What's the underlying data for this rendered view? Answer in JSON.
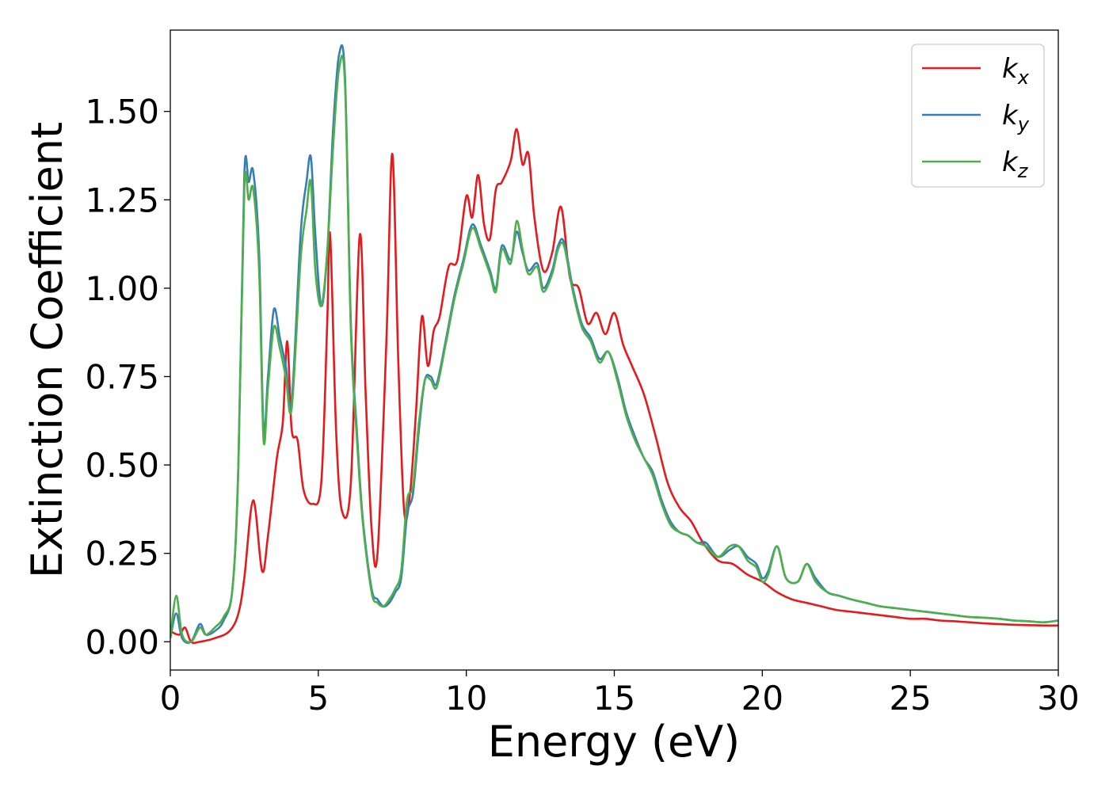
{
  "chart_data": {
    "type": "line",
    "xlabel": "Energy (eV)",
    "ylabel": "Extinction Coefficient",
    "xlim": [
      0,
      30
    ],
    "ylim": [
      -0.08,
      1.73
    ],
    "x_ticks": [
      0,
      5,
      10,
      15,
      20,
      25,
      30
    ],
    "x_tick_labels": [
      "0",
      "5",
      "10",
      "15",
      "20",
      "25",
      "30"
    ],
    "y_ticks": [
      0.0,
      0.25,
      0.5,
      0.75,
      1.0,
      1.25,
      1.5
    ],
    "y_tick_labels": [
      "0.00",
      "0.25",
      "0.50",
      "0.75",
      "1.00",
      "1.25",
      "1.50"
    ],
    "grid": false,
    "legend_position": "top-right",
    "series": [
      {
        "name": "k_x",
        "legend_base": "k",
        "legend_sub": "x",
        "color": "#e41a1c",
        "x": [
          0,
          0.3,
          0.5,
          0.7,
          1.0,
          1.5,
          2.0,
          2.3,
          2.5,
          2.8,
          3.1,
          3.3,
          3.6,
          3.8,
          3.95,
          4.1,
          4.3,
          4.5,
          4.8,
          5.1,
          5.3,
          5.4,
          5.6,
          5.8,
          6.1,
          6.4,
          6.6,
          6.8,
          7.0,
          7.3,
          7.5,
          7.7,
          7.9,
          8.1,
          8.3,
          8.5,
          8.7,
          8.9,
          9.1,
          9.4,
          9.7,
          10.0,
          10.2,
          10.4,
          10.6,
          10.8,
          11.0,
          11.2,
          11.5,
          11.7,
          11.9,
          12.1,
          12.3,
          12.6,
          12.9,
          13.2,
          13.5,
          13.8,
          14.1,
          14.4,
          14.7,
          15.0,
          15.3,
          15.6,
          16.0,
          16.4,
          16.8,
          17.2,
          17.6,
          18.0,
          18.5,
          19.0,
          19.5,
          20.0,
          20.5,
          21.0,
          21.5,
          22.0,
          22.5,
          23.0,
          23.5,
          24.0,
          24.5,
          25.0,
          25.5,
          26.0,
          26.5,
          27.0,
          27.5,
          28.0,
          28.5,
          29.0,
          29.5,
          30.0
        ],
        "y": [
          0.03,
          0.02,
          0.04,
          0.0,
          0.0,
          0.01,
          0.03,
          0.08,
          0.18,
          0.4,
          0.2,
          0.3,
          0.52,
          0.62,
          0.85,
          0.6,
          0.57,
          0.43,
          0.39,
          0.45,
          0.9,
          1.15,
          0.6,
          0.37,
          0.45,
          1.15,
          0.7,
          0.32,
          0.25,
          0.85,
          1.38,
          0.8,
          0.37,
          0.42,
          0.65,
          0.92,
          0.78,
          0.88,
          0.92,
          1.06,
          1.08,
          1.26,
          1.2,
          1.32,
          1.18,
          1.14,
          1.28,
          1.3,
          1.36,
          1.45,
          1.35,
          1.38,
          1.2,
          1.05,
          1.1,
          1.23,
          1.03,
          1.0,
          0.9,
          0.93,
          0.87,
          0.93,
          0.84,
          0.78,
          0.7,
          0.58,
          0.45,
          0.38,
          0.34,
          0.28,
          0.23,
          0.22,
          0.19,
          0.17,
          0.14,
          0.12,
          0.11,
          0.1,
          0.09,
          0.085,
          0.08,
          0.075,
          0.07,
          0.065,
          0.065,
          0.06,
          0.058,
          0.055,
          0.052,
          0.05,
          0.048,
          0.047,
          0.046,
          0.046
        ]
      },
      {
        "name": "k_y",
        "legend_base": "k",
        "legend_sub": "y",
        "color": "#377eb8",
        "x": [
          0,
          0.2,
          0.4,
          0.7,
          1.0,
          1.2,
          1.5,
          1.8,
          2.1,
          2.3,
          2.5,
          2.65,
          2.8,
          3.0,
          3.15,
          3.3,
          3.5,
          3.7,
          3.9,
          4.1,
          4.4,
          4.6,
          4.75,
          4.9,
          5.1,
          5.3,
          5.5,
          5.7,
          5.9,
          6.1,
          6.3,
          6.5,
          6.8,
          7.0,
          7.2,
          7.4,
          7.6,
          7.8,
          8.0,
          8.2,
          8.4,
          8.6,
          8.8,
          9.0,
          9.3,
          9.6,
          9.9,
          10.2,
          10.5,
          10.8,
          11.0,
          11.2,
          11.5,
          11.7,
          11.9,
          12.1,
          12.4,
          12.6,
          12.9,
          13.1,
          13.3,
          13.6,
          13.9,
          14.2,
          14.5,
          14.8,
          15.1,
          15.4,
          15.7,
          16.0,
          16.3,
          16.6,
          16.9,
          17.2,
          17.5,
          17.8,
          18.1,
          18.5,
          18.9,
          19.2,
          19.5,
          19.8,
          20.0,
          20.2,
          20.5,
          20.8,
          21.2,
          21.5,
          21.8,
          22.2,
          22.6,
          23.0,
          23.5,
          24.0,
          24.5,
          25.0,
          25.5,
          26.0,
          26.5,
          27.0,
          27.5,
          28.0,
          28.5,
          29.0,
          29.5,
          30.0
        ],
        "y": [
          0.01,
          0.08,
          0.01,
          0.0,
          0.05,
          0.02,
          0.03,
          0.06,
          0.15,
          0.5,
          1.32,
          1.3,
          1.33,
          1.1,
          0.6,
          0.75,
          0.94,
          0.86,
          0.78,
          0.68,
          1.15,
          1.3,
          1.37,
          1.15,
          0.95,
          1.1,
          1.45,
          1.66,
          1.6,
          0.9,
          0.6,
          0.35,
          0.15,
          0.12,
          0.1,
          0.11,
          0.14,
          0.18,
          0.36,
          0.42,
          0.6,
          0.74,
          0.75,
          0.73,
          0.85,
          0.98,
          1.08,
          1.18,
          1.12,
          1.05,
          1.0,
          1.12,
          1.08,
          1.16,
          1.1,
          1.05,
          1.07,
          1.0,
          1.05,
          1.12,
          1.13,
          1.0,
          0.9,
          0.86,
          0.8,
          0.82,
          0.75,
          0.65,
          0.58,
          0.52,
          0.48,
          0.4,
          0.34,
          0.31,
          0.3,
          0.28,
          0.28,
          0.24,
          0.26,
          0.27,
          0.24,
          0.22,
          0.18,
          0.2,
          0.27,
          0.18,
          0.17,
          0.22,
          0.18,
          0.14,
          0.13,
          0.12,
          0.11,
          0.1,
          0.095,
          0.09,
          0.085,
          0.08,
          0.075,
          0.07,
          0.068,
          0.065,
          0.06,
          0.058,
          0.055,
          0.06
        ]
      },
      {
        "name": "k_z",
        "legend_base": "k",
        "legend_sub": "z",
        "color": "#4daf4a",
        "x": [
          0,
          0.2,
          0.4,
          0.7,
          1.0,
          1.2,
          1.5,
          1.8,
          2.1,
          2.3,
          2.5,
          2.65,
          2.8,
          3.0,
          3.15,
          3.3,
          3.5,
          3.7,
          3.9,
          4.1,
          4.4,
          4.6,
          4.75,
          4.9,
          5.1,
          5.3,
          5.5,
          5.7,
          5.9,
          6.1,
          6.3,
          6.5,
          6.8,
          7.0,
          7.2,
          7.4,
          7.6,
          7.8,
          8.0,
          8.2,
          8.4,
          8.6,
          8.8,
          9.0,
          9.3,
          9.6,
          9.9,
          10.2,
          10.5,
          10.8,
          11.0,
          11.2,
          11.5,
          11.7,
          11.9,
          12.1,
          12.4,
          12.6,
          12.9,
          13.1,
          13.3,
          13.6,
          13.9,
          14.2,
          14.5,
          14.8,
          15.1,
          15.4,
          15.7,
          16.0,
          16.3,
          16.6,
          16.9,
          17.2,
          17.5,
          17.8,
          18.1,
          18.5,
          18.9,
          19.2,
          19.5,
          19.8,
          20.0,
          20.2,
          20.5,
          20.8,
          21.2,
          21.5,
          21.8,
          22.2,
          22.6,
          23.0,
          23.5,
          24.0,
          24.5,
          25.0,
          25.5,
          26.0,
          26.5,
          27.0,
          27.5,
          28.0,
          28.5,
          29.0,
          29.5,
          30.0
        ],
        "y": [
          0.01,
          0.13,
          0.02,
          0.0,
          0.04,
          0.02,
          0.04,
          0.07,
          0.15,
          0.5,
          1.28,
          1.25,
          1.28,
          1.05,
          0.57,
          0.72,
          0.89,
          0.83,
          0.75,
          0.66,
          1.08,
          1.22,
          1.3,
          1.05,
          0.95,
          1.1,
          1.4,
          1.62,
          1.58,
          0.88,
          0.58,
          0.34,
          0.14,
          0.11,
          0.1,
          0.12,
          0.15,
          0.2,
          0.4,
          0.44,
          0.62,
          0.74,
          0.74,
          0.72,
          0.84,
          0.97,
          1.07,
          1.17,
          1.11,
          1.04,
          0.99,
          1.11,
          1.07,
          1.19,
          1.11,
          1.04,
          1.06,
          0.99,
          1.04,
          1.11,
          1.12,
          0.99,
          0.89,
          0.85,
          0.79,
          0.82,
          0.74,
          0.64,
          0.57,
          0.52,
          0.47,
          0.39,
          0.33,
          0.31,
          0.3,
          0.28,
          0.27,
          0.24,
          0.27,
          0.27,
          0.23,
          0.21,
          0.17,
          0.19,
          0.27,
          0.18,
          0.17,
          0.22,
          0.17,
          0.14,
          0.13,
          0.12,
          0.11,
          0.1,
          0.095,
          0.09,
          0.085,
          0.08,
          0.075,
          0.07,
          0.068,
          0.065,
          0.06,
          0.058,
          0.055,
          0.06
        ]
      }
    ]
  }
}
